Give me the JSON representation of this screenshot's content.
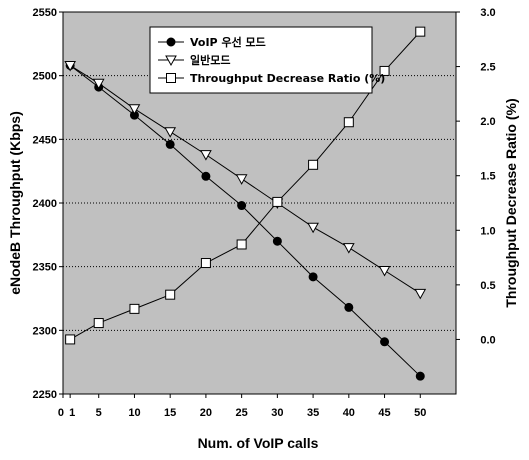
{
  "chart_data": {
    "type": "line",
    "x": [
      1,
      5,
      10,
      15,
      20,
      25,
      30,
      35,
      40,
      45,
      50
    ],
    "x_ticks": [
      0,
      1,
      5,
      10,
      15,
      20,
      25,
      30,
      35,
      40,
      45,
      50
    ],
    "x_tick_labels": [
      "0",
      "1",
      "5",
      "10",
      "15",
      "20",
      "25",
      "30",
      "35",
      "40",
      "45",
      "50"
    ],
    "xlim": [
      0,
      55
    ],
    "xlabel": "Num. of VoIP calls",
    "ylabel_left": "eNodeB Throughput (Kbps)",
    "ylabel_right": "Throughput Decrease Ratio (%)",
    "ylim_left": [
      2250,
      2550
    ],
    "ylim_right": [
      -0.5,
      3.0
    ],
    "yticks_left": [
      2250,
      2300,
      2350,
      2400,
      2450,
      2500,
      2550
    ],
    "yticks_right": [
      "0.0",
      "0.5",
      "1.0",
      "1.5",
      "2.0",
      "2.5",
      "3.0"
    ],
    "grid": "horizontal dotted",
    "plot_background": "#c0c0c0",
    "legend_position": "top-center",
    "series": [
      {
        "name": "VoIP 우선 모드",
        "axis": "left",
        "marker": "filled-circle",
        "values": [
          2508,
          2491,
          2469,
          2446,
          2421,
          2398,
          2370,
          2342,
          2318,
          2291,
          2264
        ]
      },
      {
        "name": "일반모드",
        "axis": "left",
        "marker": "open-triangle-down",
        "values": [
          2508,
          2494,
          2474,
          2456,
          2438,
          2419,
          2400,
          2381,
          2365,
          2347,
          2329
        ]
      },
      {
        "name": "Throughput Decrease Ratio (%)",
        "axis": "right",
        "marker": "open-square",
        "values": [
          0.0,
          0.15,
          0.28,
          0.41,
          0.7,
          0.87,
          1.26,
          1.6,
          1.99,
          2.46,
          2.82
        ]
      }
    ]
  }
}
